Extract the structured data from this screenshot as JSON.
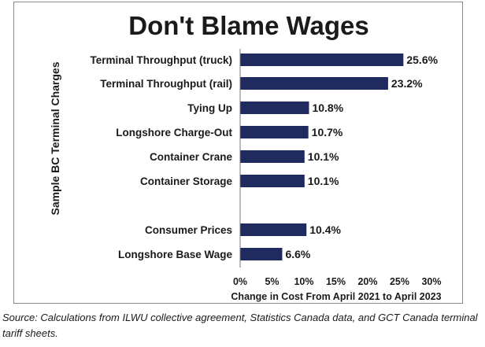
{
  "chart_data": {
    "type": "bar",
    "orientation": "horizontal",
    "title": "Don't Blame Wages",
    "ylabel": "Sample BC Terminal Charges",
    "xlabel": "Change in Cost From April 2021 to April 2023",
    "xlim": [
      0,
      30
    ],
    "xticks": [
      "0%",
      "5%",
      "10%",
      "15%",
      "20%",
      "25%",
      "30%"
    ],
    "grid": false,
    "bar_color": "#1f2a5e",
    "categories": [
      "Terminal Throughput (truck)",
      "Terminal Throughput (rail)",
      "Tying Up",
      "Longshore Charge-Out",
      "Container Crane",
      "Container Storage",
      "Consumer Prices",
      "Longshore Base Wage"
    ],
    "values": [
      25.6,
      23.2,
      10.8,
      10.7,
      10.1,
      10.1,
      10.4,
      6.6
    ],
    "value_labels": [
      "25.6%",
      "23.2%",
      "10.8%",
      "10.7%",
      "10.1%",
      "10.1%",
      "10.4%",
      "6.6%"
    ]
  },
  "source_note": "Source: Calculations from ILWU collective agreement, Statistics Canada data, and GCT Canada terminal tariff sheets."
}
